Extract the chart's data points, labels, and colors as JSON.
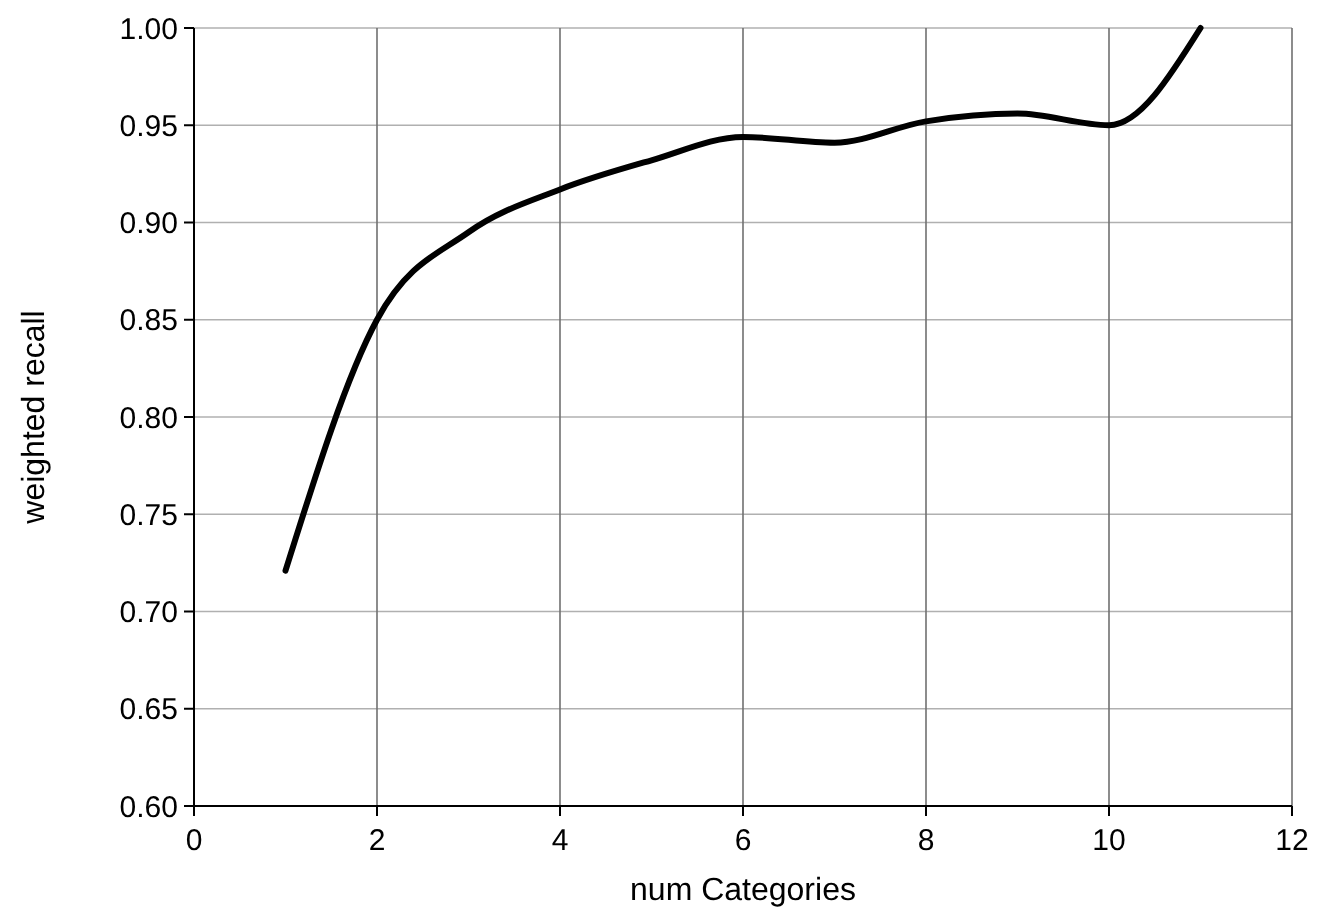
{
  "chart_data": {
    "type": "line",
    "xlabel": "num Categories",
    "ylabel": "weighted recall",
    "x": [
      1,
      2,
      3,
      4,
      5,
      6,
      7,
      8,
      9,
      10,
      11
    ],
    "series": [
      {
        "color": "#000000",
        "values": [
          0.721,
          0.85,
          0.895,
          0.917,
          0.932,
          0.944,
          0.941,
          0.952,
          0.956,
          0.95,
          1.0
        ]
      }
    ],
    "xlim": [
      0,
      12
    ],
    "xticks": [
      0,
      2,
      4,
      6,
      8,
      10,
      12
    ],
    "ylim": [
      0.6,
      1.0
    ],
    "yticks": [
      {
        "value": 0.6,
        "label": "0.60"
      },
      {
        "value": 0.65,
        "label": "0.65"
      },
      {
        "value": 0.7,
        "label": "0.70"
      },
      {
        "value": 0.75,
        "label": "0.75"
      },
      {
        "value": 0.8,
        "label": "0.80"
      },
      {
        "value": 0.85,
        "label": "0.85"
      },
      {
        "value": 0.9,
        "label": "0.90"
      },
      {
        "value": 0.95,
        "label": "0.95"
      },
      {
        "value": 1.0,
        "label": "1.00"
      }
    ],
    "grid": true,
    "marker": "none",
    "line_style": "solid"
  }
}
